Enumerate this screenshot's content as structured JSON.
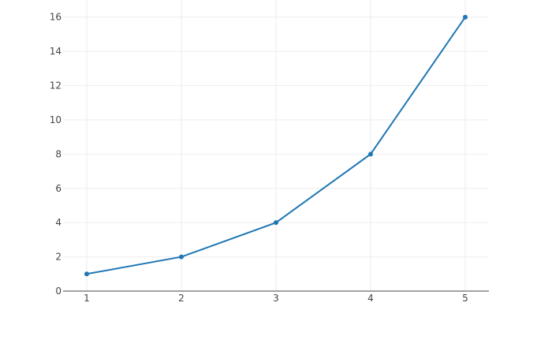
{
  "chart_data": {
    "type": "line",
    "title": "",
    "xlabel": "",
    "ylabel": "",
    "x": [
      1,
      2,
      3,
      4,
      5
    ],
    "series": [
      {
        "values": [
          1,
          2,
          4,
          8,
          16
        ],
        "color": "#1f77b4",
        "mode": "lines+markers"
      }
    ],
    "xlim": [
      0.75,
      5.25
    ],
    "ylim": [
      0,
      17
    ],
    "xticks": [
      1,
      2,
      3,
      4,
      5
    ],
    "yticks": [
      0,
      2,
      4,
      6,
      8,
      10,
      12,
      14,
      16
    ],
    "grid": true,
    "gridColor": "#eeeeee",
    "zerolineColor": "#444444"
  }
}
